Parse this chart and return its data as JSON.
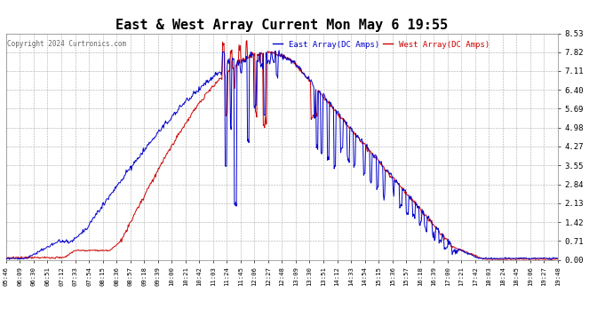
{
  "title": "East & West Array Current Mon May 6 19:55",
  "title_fontsize": 11,
  "copyright": "Copyright 2024 Curtronics.com",
  "legend_east": "East Array(DC Amps)",
  "legend_west": "West Array(DC Amps)",
  "east_color": "#0000cc",
  "west_color": "#cc0000",
  "background_color": "#ffffff",
  "grid_color": "#aaaaaa",
  "ylim": [
    0.0,
    8.53
  ],
  "yticks": [
    0.0,
    0.71,
    1.42,
    2.13,
    2.84,
    3.55,
    4.27,
    4.98,
    5.69,
    6.4,
    7.11,
    7.82,
    8.53
  ],
  "x_labels": [
    "05:46",
    "06:09",
    "06:30",
    "06:51",
    "07:12",
    "07:33",
    "07:54",
    "08:15",
    "08:36",
    "08:57",
    "09:18",
    "09:39",
    "10:00",
    "10:21",
    "10:42",
    "11:03",
    "11:24",
    "11:45",
    "12:06",
    "12:27",
    "12:48",
    "13:09",
    "13:30",
    "13:51",
    "14:12",
    "14:33",
    "14:54",
    "15:15",
    "15:36",
    "15:57",
    "16:18",
    "16:39",
    "17:00",
    "17:21",
    "17:42",
    "18:03",
    "18:24",
    "18:45",
    "19:06",
    "19:27",
    "19:48"
  ],
  "line_width": 0.7,
  "font_family": "monospace"
}
